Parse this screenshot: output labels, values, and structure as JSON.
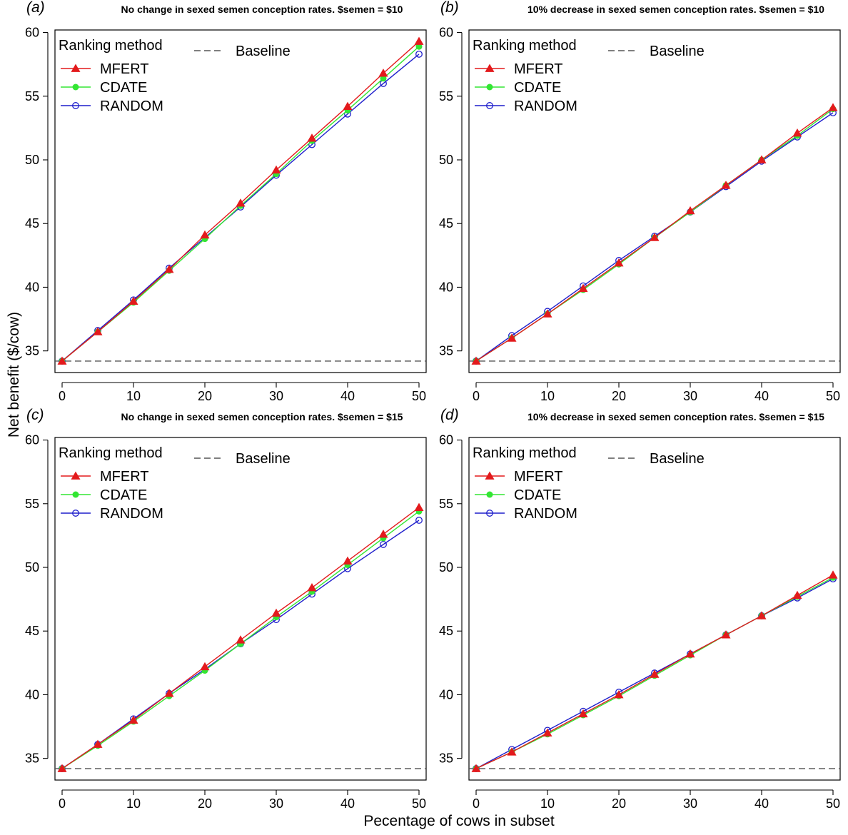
{
  "figure": {
    "xlabel": "Pecentage of cows in subset",
    "ylabel": "Net benefit ($/cow)"
  },
  "colors": {
    "MFERT": "#e31a1c",
    "CDATE": "#33e633",
    "RANDOM": "#1f1fcc",
    "baseline": "#555555"
  },
  "chart_data": [
    {
      "type": "line",
      "panel_label": "(a)",
      "title": "No change in sexed semen conception rates. $semen = $10",
      "x": [
        0,
        5,
        10,
        15,
        20,
        25,
        30,
        35,
        40,
        45,
        50
      ],
      "xticks": [
        0,
        10,
        20,
        30,
        40,
        50
      ],
      "yticks": [
        35,
        40,
        45,
        50,
        55,
        60
      ],
      "xlim": [
        -1,
        51
      ],
      "ylim": [
        33.3,
        60.2
      ],
      "baseline": 34.2,
      "legend_title": "Ranking method",
      "baseline_label": "Baseline",
      "series": [
        {
          "name": "MFERT",
          "marker": "triangle",
          "values": [
            34.2,
            36.5,
            38.9,
            41.4,
            44.1,
            46.6,
            49.2,
            51.7,
            54.2,
            56.8,
            59.3
          ]
        },
        {
          "name": "CDATE",
          "marker": "circle-filled",
          "values": [
            34.2,
            36.5,
            38.8,
            41.3,
            43.8,
            46.4,
            48.9,
            51.5,
            53.9,
            56.4,
            58.9
          ]
        },
        {
          "name": "RANDOM",
          "marker": "circle-open",
          "values": [
            34.2,
            36.6,
            39.0,
            41.5,
            43.9,
            46.3,
            48.8,
            51.2,
            53.6,
            56.0,
            58.3
          ]
        }
      ]
    },
    {
      "type": "line",
      "panel_label": "(b)",
      "title": "10% decrease in sexed semen conception rates. $semen = $10",
      "x": [
        0,
        5,
        10,
        15,
        20,
        25,
        30,
        35,
        40,
        45,
        50
      ],
      "xticks": [
        0,
        10,
        20,
        30,
        40,
        50
      ],
      "yticks": [
        35,
        40,
        45,
        50,
        55,
        60
      ],
      "xlim": [
        -1,
        51
      ],
      "ylim": [
        33.3,
        60.2
      ],
      "baseline": 34.2,
      "legend_title": "Ranking method",
      "baseline_label": "Baseline",
      "series": [
        {
          "name": "MFERT",
          "marker": "triangle",
          "values": [
            34.2,
            36.0,
            37.9,
            39.9,
            41.9,
            43.9,
            46.0,
            48.0,
            50.0,
            52.1,
            54.1
          ]
        },
        {
          "name": "CDATE",
          "marker": "circle-filled",
          "values": [
            34.2,
            36.0,
            37.9,
            39.8,
            41.8,
            43.9,
            45.9,
            48.0,
            50.0,
            51.9,
            54.0
          ]
        },
        {
          "name": "RANDOM",
          "marker": "circle-open",
          "values": [
            34.2,
            36.2,
            38.1,
            40.1,
            42.1,
            44.0,
            45.9,
            47.9,
            49.9,
            51.8,
            53.7
          ]
        }
      ]
    },
    {
      "type": "line",
      "panel_label": "(c)",
      "title": "No change in sexed semen conception rates. $semen = $15",
      "x": [
        0,
        5,
        10,
        15,
        20,
        25,
        30,
        35,
        40,
        45,
        50
      ],
      "xticks": [
        0,
        10,
        20,
        30,
        40,
        50
      ],
      "yticks": [
        35,
        40,
        45,
        50,
        55,
        60
      ],
      "xlim": [
        -1,
        51
      ],
      "ylim": [
        33.3,
        60.2
      ],
      "baseline": 34.2,
      "legend_title": "Ranking method",
      "baseline_label": "Baseline",
      "series": [
        {
          "name": "MFERT",
          "marker": "triangle",
          "values": [
            34.2,
            36.1,
            38.0,
            40.1,
            42.2,
            44.3,
            46.4,
            48.4,
            50.5,
            52.6,
            54.7
          ]
        },
        {
          "name": "CDATE",
          "marker": "circle-filled",
          "values": [
            34.2,
            36.0,
            37.9,
            39.9,
            41.9,
            44.0,
            46.1,
            48.1,
            50.2,
            52.3,
            54.4
          ]
        },
        {
          "name": "RANDOM",
          "marker": "circle-open",
          "values": [
            34.2,
            36.1,
            38.1,
            40.1,
            42.0,
            44.0,
            45.9,
            47.9,
            49.9,
            51.8,
            53.7
          ]
        }
      ]
    },
    {
      "type": "line",
      "panel_label": "(d)",
      "title": "10% decrease in sexed semen conception rates. $semen = $15",
      "x": [
        0,
        5,
        10,
        15,
        20,
        25,
        30,
        35,
        40,
        45,
        50
      ],
      "xticks": [
        0,
        10,
        20,
        30,
        40,
        50
      ],
      "yticks": [
        35,
        40,
        45,
        50,
        55,
        60
      ],
      "xlim": [
        -1,
        51
      ],
      "ylim": [
        33.3,
        60.2
      ],
      "baseline": 34.2,
      "legend_title": "Ranking method",
      "baseline_label": "Baseline",
      "series": [
        {
          "name": "MFERT",
          "marker": "triangle",
          "values": [
            34.2,
            35.5,
            37.0,
            38.5,
            40.0,
            41.6,
            43.2,
            44.7,
            46.2,
            47.8,
            49.4
          ]
        },
        {
          "name": "CDATE",
          "marker": "circle-filled",
          "values": [
            34.2,
            35.5,
            36.9,
            38.4,
            39.9,
            41.5,
            43.1,
            44.7,
            46.2,
            47.7,
            49.2
          ]
        },
        {
          "name": "RANDOM",
          "marker": "circle-open",
          "values": [
            34.2,
            35.7,
            37.2,
            38.7,
            40.2,
            41.7,
            43.2,
            44.7,
            46.2,
            47.6,
            49.1
          ]
        }
      ]
    }
  ]
}
